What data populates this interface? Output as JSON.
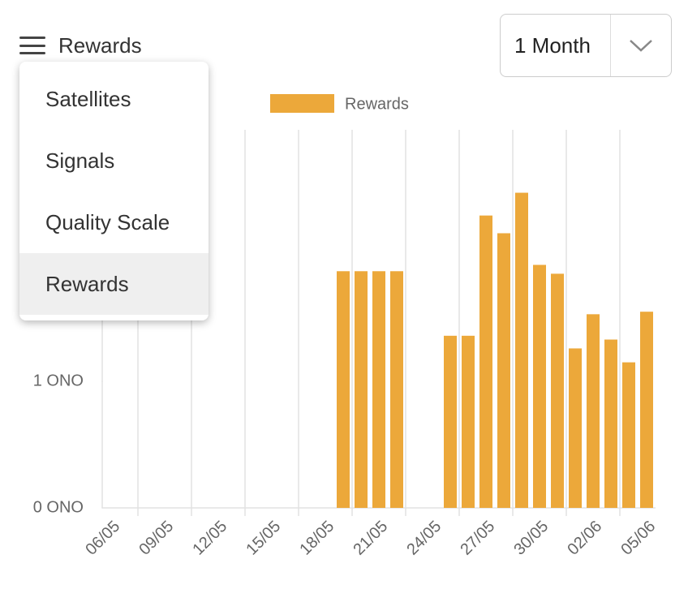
{
  "header": {
    "title": "Rewards"
  },
  "menu": {
    "items": [
      "Satellites",
      "Signals",
      "Quality Scale",
      "Rewards"
    ],
    "selected": 3
  },
  "period_select": {
    "value": "1 Month"
  },
  "chart_data": {
    "type": "bar",
    "categories": [
      "06/05",
      null,
      null,
      "09/05",
      null,
      null,
      "12/05",
      null,
      null,
      "15/05",
      null,
      null,
      "18/05",
      null,
      null,
      "21/05",
      null,
      null,
      "24/05",
      null,
      null,
      "27/05",
      null,
      null,
      "30/05",
      null,
      null,
      "02/06",
      null,
      null,
      "05/06"
    ],
    "series": [
      {
        "name": "Rewards",
        "color": "#eca83a",
        "values": [
          0,
          0,
          0,
          0,
          0,
          0,
          0,
          0,
          0,
          0,
          0,
          0,
          0,
          1.87,
          1.87,
          1.87,
          1.87,
          0,
          0,
          1.36,
          1.36,
          2.31,
          2.17,
          2.49,
          1.92,
          1.85,
          1.26,
          1.53,
          1.33,
          1.15,
          1.55
        ]
      }
    ],
    "ylim": [
      0,
      3
    ],
    "yticks": [
      {
        "value": 0,
        "label": "0 ONO"
      },
      {
        "value": 1,
        "label": "1 ONO"
      }
    ],
    "grid": true,
    "legend": "top"
  }
}
